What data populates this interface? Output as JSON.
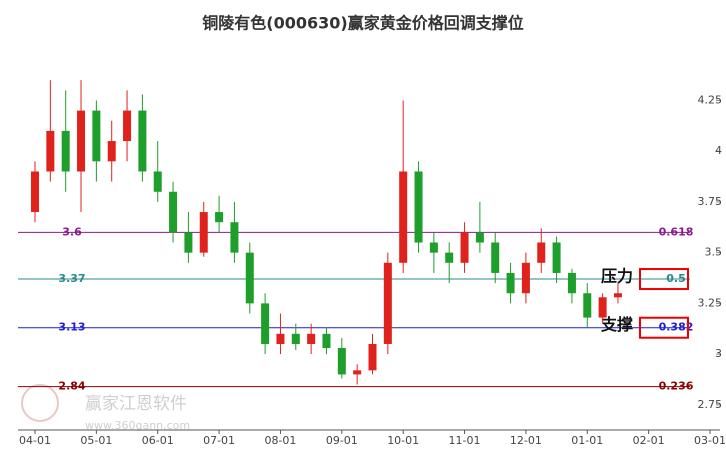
{
  "chart_data": {
    "type": "candlestick",
    "title": "铜陵有色(000630)赢家黄金价格回调支撑位",
    "watermark": "赢家江恩软件",
    "watermark_url": "www.360gann.com",
    "categories": [
      "04-01",
      null,
      null,
      null,
      "05-01",
      null,
      null,
      null,
      "06-01",
      null,
      null,
      null,
      "07-01",
      null,
      null,
      null,
      "08-01",
      null,
      null,
      null,
      "09-01",
      null,
      null,
      null,
      "10-01",
      null,
      null,
      null,
      "11-01",
      null,
      null,
      null,
      "12-01",
      null,
      null,
      null,
      "01-01",
      null,
      null,
      null,
      "02-01",
      null,
      null,
      null,
      "03-01"
    ],
    "open": [
      3.7,
      3.9,
      4.1,
      3.9,
      4.2,
      3.95,
      4.05,
      4.2,
      3.9,
      3.8,
      3.6,
      3.5,
      3.7,
      3.65,
      3.5,
      3.25,
      3.05,
      3.1,
      3.05,
      3.1,
      3.03,
      2.9,
      2.92,
      3.05,
      3.45,
      3.9,
      3.55,
      3.5,
      3.45,
      3.6,
      3.55,
      3.4,
      3.3,
      3.45,
      3.55,
      3.4,
      3.3,
      3.18,
      3.28,
      null,
      null,
      null,
      null,
      null,
      null
    ],
    "high": [
      3.95,
      4.35,
      4.3,
      4.35,
      4.25,
      4.15,
      4.3,
      4.28,
      4.05,
      3.85,
      3.7,
      3.75,
      3.78,
      3.75,
      3.55,
      3.3,
      3.2,
      3.15,
      3.15,
      3.13,
      3.08,
      2.95,
      3.1,
      3.5,
      4.25,
      3.95,
      3.6,
      3.55,
      3.65,
      3.75,
      3.6,
      3.45,
      3.5,
      3.62,
      3.58,
      3.42,
      3.35,
      3.3,
      3.35,
      null,
      null,
      null,
      null,
      null,
      null
    ],
    "low": [
      3.65,
      3.85,
      3.8,
      3.7,
      3.85,
      3.85,
      3.95,
      3.85,
      3.75,
      3.55,
      3.45,
      3.48,
      3.6,
      3.45,
      3.2,
      3.0,
      3.0,
      3.02,
      3.0,
      3.0,
      2.88,
      2.85,
      2.9,
      3.0,
      3.4,
      3.5,
      3.4,
      3.35,
      3.4,
      3.5,
      3.35,
      3.25,
      3.25,
      3.4,
      3.35,
      3.25,
      3.13,
      3.15,
      3.25,
      null,
      null,
      null,
      null,
      null,
      null
    ],
    "close": [
      3.9,
      4.1,
      3.9,
      4.2,
      3.95,
      4.05,
      4.2,
      3.9,
      3.8,
      3.6,
      3.5,
      3.7,
      3.65,
      3.5,
      3.25,
      3.05,
      3.1,
      3.05,
      3.1,
      3.03,
      2.9,
      2.92,
      3.05,
      3.45,
      3.9,
      3.55,
      3.5,
      3.45,
      3.6,
      3.55,
      3.4,
      3.3,
      3.45,
      3.55,
      3.4,
      3.3,
      3.18,
      3.28,
      3.3,
      null,
      null,
      null,
      null,
      null,
      null
    ],
    "up_color": "#e0221c",
    "down_color": "#1e9e2a",
    "ylim": [
      2.7,
      4.4
    ],
    "yticks": [
      2.75,
      3,
      3.25,
      3.5,
      3.75,
      4,
      4.25
    ],
    "levels": [
      {
        "value": 3.6,
        "ratio": 0.618,
        "color": "#8b1a8b"
      },
      {
        "value": 3.37,
        "ratio": 0.5,
        "color": "#2a8a8a",
        "annotation": "压力"
      },
      {
        "value": 3.13,
        "ratio": 0.382,
        "color": "#1f1fd0",
        "annotation": "支撑"
      },
      {
        "value": 2.84,
        "ratio": 0.236,
        "color": "#8b0000"
      }
    ]
  }
}
